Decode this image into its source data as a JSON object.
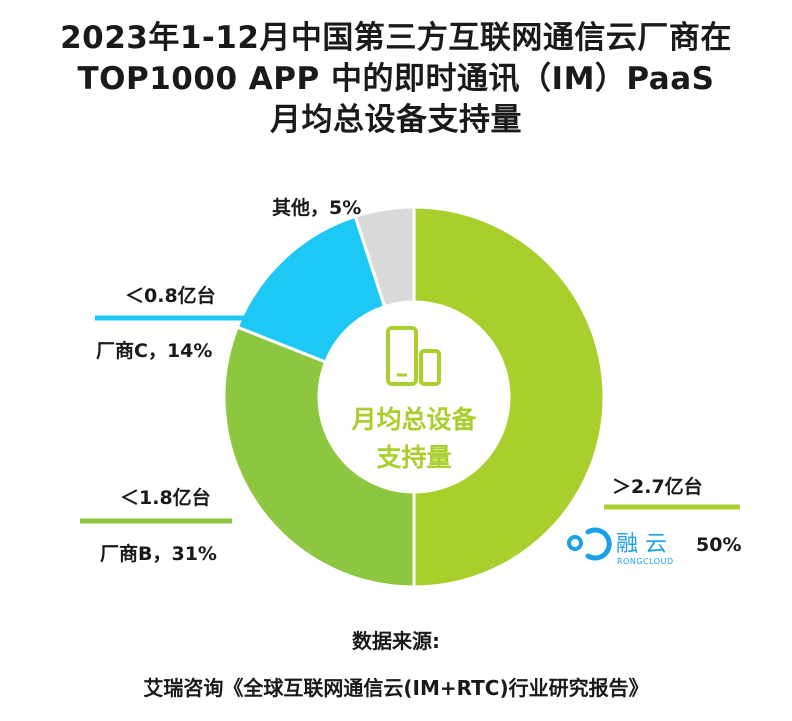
{
  "title_lines": [
    "2023年1-12月中国第三方互联网通信云厂商在",
    "TOP1000 APP 中的即时通讯（IM）PaaS",
    "月均总设备支持量"
  ],
  "center_label_lines": [
    "月均总设备",
    "支持量"
  ],
  "brand": {
    "name": "融 云",
    "sub": "RONGCLOUD"
  },
  "source_label": "数据来源:",
  "source_text": "艾瑞咨询《全球互联网通信云(IM+RTC)行业研究报告》",
  "colors": {
    "rongcloud": "#a9cf2d",
    "vendor_b": "#8dc63f",
    "vendor_c": "#1ec8f4",
    "other": "#d9d9d9",
    "center": "#ffffff",
    "brand_blue": "#1aa0e8"
  },
  "chart_data": {
    "type": "pie",
    "style": "donut",
    "title": "2023年1-12月中国第三方互联网通信云厂商在TOP1000 APP 中的即时通讯（IM）PaaS月均总设备支持量",
    "slices": [
      {
        "name": "融云",
        "value": 50,
        "percent_label": "50%",
        "device_label": "＞2.7亿台",
        "color": "#a9cf2d"
      },
      {
        "name": "厂商B",
        "value": 31,
        "label": "厂商B，31%",
        "device_label": "＜1.8亿台",
        "color": "#8dc63f"
      },
      {
        "name": "厂商C",
        "value": 14,
        "label": "厂商C，14%",
        "device_label": "＜0.8亿台",
        "color": "#1ec8f4"
      },
      {
        "name": "其他",
        "value": 5,
        "label": "其他，5%",
        "color": "#d9d9d9"
      }
    ]
  }
}
